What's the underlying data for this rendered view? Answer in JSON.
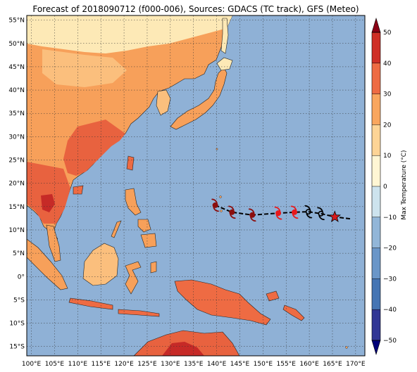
{
  "title": "Forecast of 2018090712 (f000-006), Sources: GDACS (TC track), GFS (Meteo)",
  "map": {
    "lon_range": [
      99,
      172
    ],
    "lat_range": [
      -17,
      56
    ],
    "lon_ticks": [
      {
        "v": 100,
        "label": "100°E"
      },
      {
        "v": 105,
        "label": "105°E"
      },
      {
        "v": 110,
        "label": "110°E"
      },
      {
        "v": 115,
        "label": "115°E"
      },
      {
        "v": 120,
        "label": "120°E"
      },
      {
        "v": 125,
        "label": "125°E"
      },
      {
        "v": 130,
        "label": "130°E"
      },
      {
        "v": 135,
        "label": "135°E"
      },
      {
        "v": 140,
        "label": "140°E"
      },
      {
        "v": 145,
        "label": "145°E"
      },
      {
        "v": 150,
        "label": "150°E"
      },
      {
        "v": 155,
        "label": "155°E"
      },
      {
        "v": 160,
        "label": "160°E"
      },
      {
        "v": 165,
        "label": "165°E"
      },
      {
        "v": 170,
        "label": "170°E"
      }
    ],
    "lat_ticks": [
      {
        "v": 55,
        "label": "55°N"
      },
      {
        "v": 50,
        "label": "50°N"
      },
      {
        "v": 45,
        "label": "45°N"
      },
      {
        "v": 40,
        "label": "40°N"
      },
      {
        "v": 35,
        "label": "35°N"
      },
      {
        "v": 30,
        "label": "30°N"
      },
      {
        "v": 25,
        "label": "25°N"
      },
      {
        "v": 20,
        "label": "20°N"
      },
      {
        "v": 15,
        "label": "15°N"
      },
      {
        "v": 10,
        "label": "10°N"
      },
      {
        "v": 5,
        "label": "5°N"
      },
      {
        "v": 0,
        "label": "0°"
      },
      {
        "v": -5,
        "label": "5°S"
      },
      {
        "v": -10,
        "label": "10°S"
      },
      {
        "v": -15,
        "label": "15°S"
      }
    ],
    "ocean_color": "#8fb1d6",
    "grid": true
  },
  "track": {
    "points": [
      {
        "lon": 165.5,
        "lat": 12.8,
        "kind": "star",
        "color": "#d7191c"
      },
      {
        "lon": 162.5,
        "lat": 13.5,
        "kind": "tc",
        "color": "#000000"
      },
      {
        "lon": 159.8,
        "lat": 13.9,
        "kind": "tc",
        "color": "#000000"
      },
      {
        "lon": 156.8,
        "lat": 13.8,
        "kind": "tc",
        "color": "#e8191c"
      },
      {
        "lon": 153.3,
        "lat": 13.6,
        "kind": "tc",
        "color": "#e8191c"
      },
      {
        "lon": 147.7,
        "lat": 13.2,
        "kind": "tc",
        "color": "#8b0e0e"
      },
      {
        "lon": 143.3,
        "lat": 13.8,
        "kind": "tc",
        "color": "#8b0e0e"
      },
      {
        "lon": 139.7,
        "lat": 15.3,
        "kind": "tc",
        "color": "#8b0e0e"
      }
    ],
    "end_lon": 168.8,
    "end_lat": 12.4
  },
  "colorbar": {
    "label": "Max Temperature (°C)",
    "min": -50,
    "max": 50,
    "step": 10,
    "ticks": [
      "50",
      "40",
      "30",
      "20",
      "10",
      "0",
      "−10",
      "−20",
      "−30",
      "−40",
      "−50"
    ],
    "colors": [
      "#313695",
      "#4575b4",
      "#6a96c8",
      "#92b6d8",
      "#cde3ee",
      "#fff6d4",
      "#fdd496",
      "#f9a65e",
      "#ee6b43",
      "#cf2f26"
    ],
    "under_color": "#000078",
    "over_color": "#8b0015"
  }
}
